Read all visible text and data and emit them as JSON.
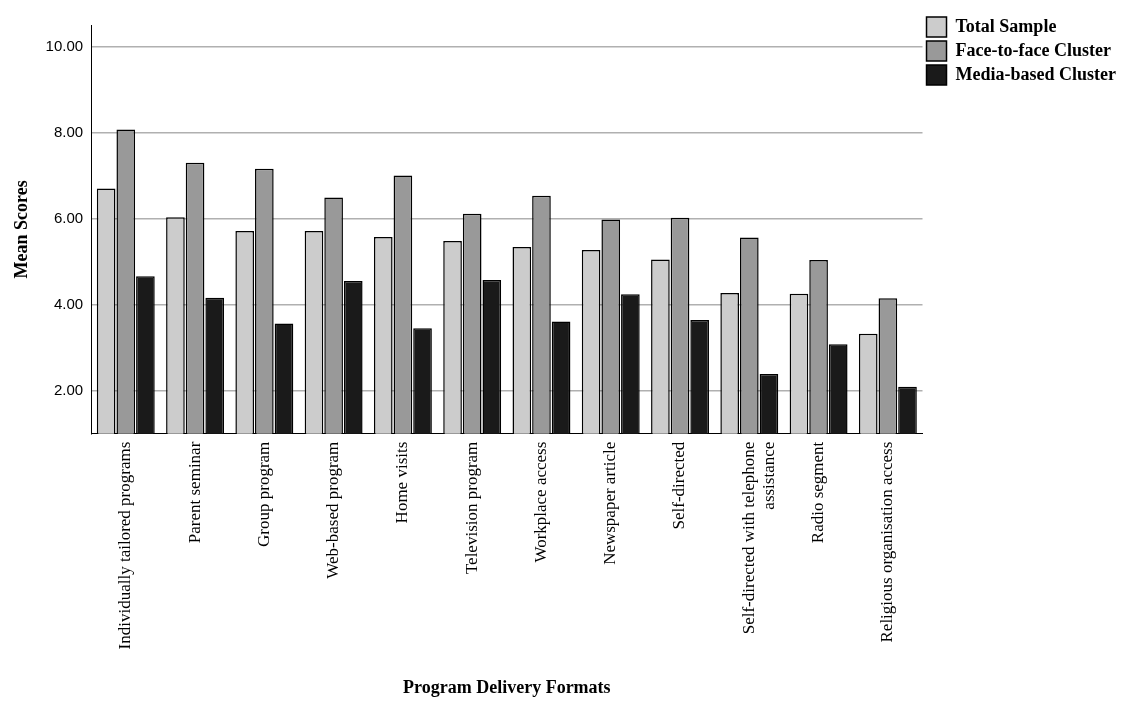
{
  "chart_data": {
    "type": "bar",
    "xlabel": "Program Delivery Formats",
    "ylabel": "Mean Scores",
    "categories": [
      "Individually tailored programs",
      "Parent seminar",
      "Group program",
      "Web-based program",
      "Home visits",
      "Television program",
      "Workplace access",
      "Newspaper article",
      "Self-directed",
      "Self-directed with telephone assistance",
      "Radio segment",
      "Religious organisation access"
    ],
    "series": [
      {
        "name": "Total Sample",
        "color": "#cccccc",
        "values": [
          6.7,
          6.03,
          5.71,
          5.71,
          5.57,
          5.48,
          5.34,
          5.27,
          5.05,
          4.27,
          4.25,
          3.32
        ]
      },
      {
        "name": "Face-to-face Cluster",
        "color": "#999999",
        "values": [
          8.07,
          7.3,
          7.16,
          6.49,
          7.0,
          6.11,
          6.53,
          5.98,
          6.02,
          5.56,
          5.04,
          4.15
        ]
      },
      {
        "name": "Media-based Cluster",
        "color": "#1a1a1a",
        "values": [
          4.66,
          4.16,
          3.56,
          4.55,
          3.45,
          4.57,
          3.61,
          4.24,
          3.64,
          2.39,
          3.08,
          2.09
        ]
      }
    ],
    "ylim": [
      1,
      10.5
    ],
    "yticks": [
      {
        "value": 2,
        "label": "2.00"
      },
      {
        "value": 4,
        "label": "4.00"
      },
      {
        "value": 6,
        "label": "6.00"
      },
      {
        "value": 8,
        "label": "8.00"
      },
      {
        "value": 10,
        "label": "10.00"
      }
    ],
    "grid": "y",
    "legend": "top right"
  }
}
